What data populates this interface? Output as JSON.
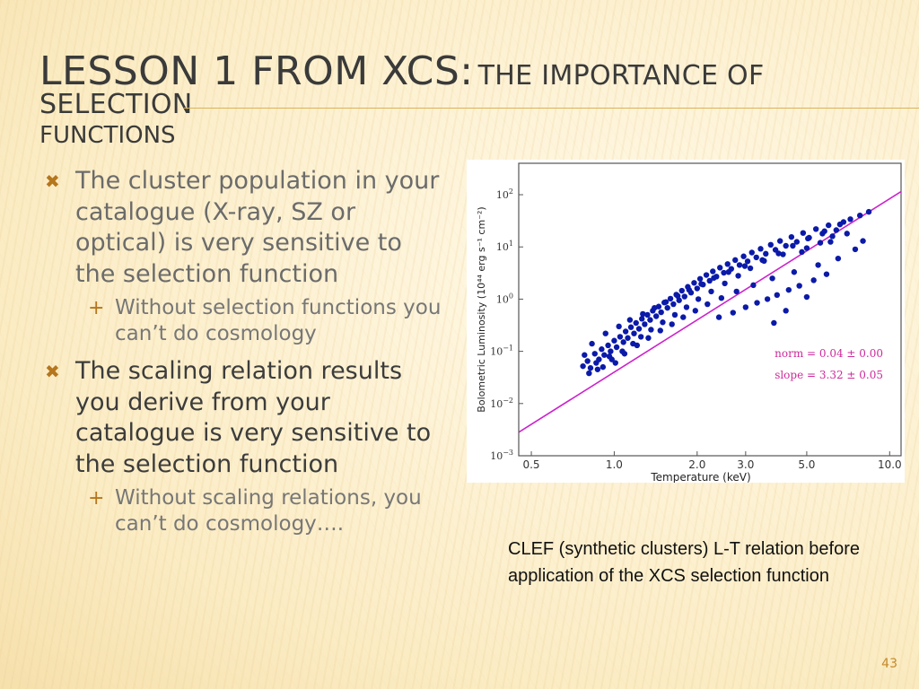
{
  "slide": {
    "title_main": "Lesson 1 from XCS:",
    "title_sub": "The importance of selection",
    "title_sub2": "functions",
    "page_number": "43",
    "caption": "CLEF (synthetic clusters) L-T relation before application of the XCS selection function",
    "accent_color": "#b5761e"
  },
  "bullets": [
    {
      "text": "The cluster population in your catalogue (X-ray, SZ or optical) is very sensitive to the selection function",
      "sub": "Without selection functions you can’t do cosmology"
    },
    {
      "text": "The scaling relation results you derive from your catalogue is very sensitive to the selection function",
      "sub": "Without scaling relations, you can’t do cosmology…."
    }
  ],
  "chart_data": {
    "type": "scatter",
    "xlabel": "Temperature (keV)",
    "ylabel": "Bolometric Luminosity (10⁴⁴ erg s⁻¹ cm⁻²)",
    "x_scale": "log",
    "y_scale": "log",
    "xlim": [
      0.45,
      11.0
    ],
    "ylim": [
      0.001,
      400
    ],
    "x_ticks": [
      {
        "value": 0.5,
        "label": "0.5"
      },
      {
        "value": 1.0,
        "label": "1.0"
      },
      {
        "value": 2.0,
        "label": "2.0"
      },
      {
        "value": 3.0,
        "label": "3.0"
      },
      {
        "value": 5.0,
        "label": "5.0"
      },
      {
        "value": 10.0,
        "label": "10.0"
      }
    ],
    "y_ticks": [
      {
        "value": 0.001,
        "base": "10",
        "exp": "−3"
      },
      {
        "value": 0.01,
        "base": "10",
        "exp": "−2"
      },
      {
        "value": 0.1,
        "base": "10",
        "exp": "−1"
      },
      {
        "value": 1,
        "base": "10",
        "exp": "0"
      },
      {
        "value": 10,
        "base": "10",
        "exp": "1"
      },
      {
        "value": 100,
        "base": "10",
        "exp": "2"
      }
    ],
    "annotations": [
      "norm = 0.04 ± 0.00",
      "slope = 3.32 ± 0.05"
    ],
    "annotation_color": "#cc2a9a",
    "point_color": "#0b1aa8",
    "fit_color": "#cc22cc",
    "fit_line": {
      "norm": 0.04,
      "slope": 3.32
    },
    "points": [
      [
        0.77,
        0.052
      ],
      [
        0.8,
        0.065
      ],
      [
        0.82,
        0.048
      ],
      [
        0.85,
        0.09
      ],
      [
        0.88,
        0.07
      ],
      [
        0.9,
        0.11
      ],
      [
        0.92,
        0.085
      ],
      [
        0.95,
        0.13
      ],
      [
        0.97,
        0.1
      ],
      [
        1.0,
        0.16
      ],
      [
        1.02,
        0.12
      ],
      [
        1.05,
        0.19
      ],
      [
        1.08,
        0.15
      ],
      [
        1.1,
        0.24
      ],
      [
        1.12,
        0.18
      ],
      [
        1.15,
        0.29
      ],
      [
        1.18,
        0.22
      ],
      [
        1.2,
        0.35
      ],
      [
        1.23,
        0.27
      ],
      [
        1.26,
        0.42
      ],
      [
        1.29,
        0.33
      ],
      [
        1.32,
        0.5
      ],
      [
        1.35,
        0.4
      ],
      [
        1.38,
        0.6
      ],
      [
        1.42,
        0.47
      ],
      [
        1.45,
        0.72
      ],
      [
        1.48,
        0.56
      ],
      [
        1.52,
        0.86
      ],
      [
        1.56,
        0.68
      ],
      [
        1.6,
        1.02
      ],
      [
        1.64,
        0.8
      ],
      [
        1.68,
        1.22
      ],
      [
        1.72,
        0.95
      ],
      [
        1.76,
        1.45
      ],
      [
        1.8,
        1.12
      ],
      [
        1.85,
        1.72
      ],
      [
        1.9,
        1.33
      ],
      [
        1.95,
        2.05
      ],
      [
        2.0,
        1.6
      ],
      [
        2.05,
        2.45
      ],
      [
        2.1,
        1.9
      ],
      [
        2.16,
        2.9
      ],
      [
        2.22,
        2.25
      ],
      [
        2.28,
        3.4
      ],
      [
        2.35,
        2.7
      ],
      [
        2.42,
        4.0
      ],
      [
        2.5,
        3.2
      ],
      [
        2.58,
        4.7
      ],
      [
        2.66,
        3.8
      ],
      [
        2.75,
        5.6
      ],
      [
        2.85,
        4.5
      ],
      [
        2.95,
        6.6
      ],
      [
        3.05,
        5.3
      ],
      [
        3.16,
        7.8
      ],
      [
        3.28,
        6.3
      ],
      [
        3.4,
        9.2
      ],
      [
        3.55,
        7.4
      ],
      [
        3.7,
        11.0
      ],
      [
        3.85,
        8.8
      ],
      [
        4.0,
        13.0
      ],
      [
        4.2,
        10.5
      ],
      [
        4.4,
        15.5
      ],
      [
        4.6,
        12.5
      ],
      [
        4.85,
        18.5
      ],
      [
        5.1,
        15.0
      ],
      [
        5.4,
        22.0
      ],
      [
        5.7,
        18.0
      ],
      [
        6.0,
        26.0
      ],
      [
        6.4,
        21.0
      ],
      [
        6.8,
        30.0
      ],
      [
        0.78,
        0.085
      ],
      [
        0.83,
        0.14
      ],
      [
        0.87,
        0.045
      ],
      [
        0.93,
        0.22
      ],
      [
        0.98,
        0.07
      ],
      [
        1.04,
        0.3
      ],
      [
        1.09,
        0.09
      ],
      [
        1.14,
        0.4
      ],
      [
        1.21,
        0.13
      ],
      [
        1.27,
        0.52
      ],
      [
        1.33,
        0.18
      ],
      [
        1.4,
        0.68
      ],
      [
        1.47,
        0.25
      ],
      [
        1.54,
        0.88
      ],
      [
        1.62,
        0.33
      ],
      [
        1.7,
        1.15
      ],
      [
        1.78,
        0.45
      ],
      [
        1.87,
        1.5
      ],
      [
        1.97,
        0.6
      ],
      [
        2.07,
        1.95
      ],
      [
        2.18,
        0.8
      ],
      [
        2.3,
        2.55
      ],
      [
        2.45,
        1.05
      ],
      [
        2.6,
        3.3
      ],
      [
        2.78,
        1.4
      ],
      [
        2.98,
        4.3
      ],
      [
        3.2,
        1.85
      ],
      [
        3.45,
        5.6
      ],
      [
        3.75,
        2.5
      ],
      [
        4.1,
        7.2
      ],
      [
        4.5,
        3.3
      ],
      [
        5.0,
        9.5
      ],
      [
        5.5,
        4.5
      ],
      [
        6.1,
        12.5
      ],
      [
        0.81,
        0.038
      ],
      [
        0.86,
        0.06
      ],
      [
        0.91,
        0.05
      ],
      [
        0.96,
        0.08
      ],
      [
        1.01,
        0.06
      ],
      [
        1.07,
        0.1
      ],
      [
        1.17,
        0.14
      ],
      [
        1.25,
        0.19
      ],
      [
        1.36,
        0.26
      ],
      [
        1.5,
        0.36
      ],
      [
        1.66,
        0.5
      ],
      [
        1.83,
        0.7
      ],
      [
        2.02,
        1.0
      ],
      [
        2.25,
        1.4
      ],
      [
        2.52,
        2.0
      ],
      [
        2.82,
        2.8
      ],
      [
        3.12,
        3.9
      ],
      [
        3.5,
        5.4
      ],
      [
        3.95,
        7.5
      ],
      [
        4.45,
        10.5
      ],
      [
        5.05,
        14.5
      ],
      [
        5.8,
        20.0
      ],
      [
        6.6,
        27.0
      ],
      [
        7.2,
        34.0
      ],
      [
        7.8,
        40.0
      ],
      [
        8.4,
        47.0
      ],
      [
        2.4,
        0.45
      ],
      [
        2.7,
        0.55
      ],
      [
        3.0,
        0.7
      ],
      [
        3.3,
        0.85
      ],
      [
        3.6,
        1.0
      ],
      [
        3.9,
        1.2
      ],
      [
        4.3,
        1.5
      ],
      [
        4.7,
        1.8
      ],
      [
        5.3,
        2.3
      ],
      [
        5.9,
        3.0
      ],
      [
        3.8,
        0.35
      ],
      [
        4.2,
        0.6
      ],
      [
        5.0,
        1.1
      ],
      [
        6.5,
        6.0
      ],
      [
        7.5,
        9.0
      ],
      [
        8.0,
        13.0
      ],
      [
        7.0,
        18.0
      ],
      [
        6.2,
        16.0
      ],
      [
        5.6,
        12.0
      ],
      [
        4.8,
        8.0
      ]
    ]
  }
}
